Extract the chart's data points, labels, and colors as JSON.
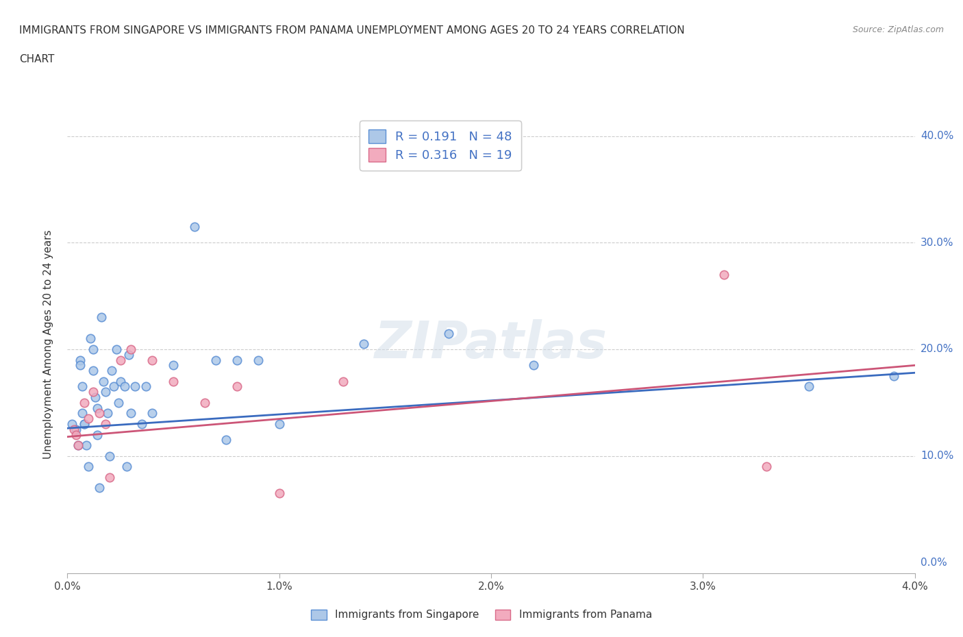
{
  "title_line1": "IMMIGRANTS FROM SINGAPORE VS IMMIGRANTS FROM PANAMA UNEMPLOYMENT AMONG AGES 20 TO 24 YEARS CORRELATION",
  "title_line2": "CHART",
  "source": "Source: ZipAtlas.com",
  "ylabel": "Unemployment Among Ages 20 to 24 years",
  "xlim": [
    0.0,
    0.04
  ],
  "ylim": [
    -0.01,
    0.42
  ],
  "watermark": "ZIPatlas",
  "legend1_r": "0.191",
  "legend1_n": "48",
  "legend2_r": "0.316",
  "legend2_n": "19",
  "singapore_color": "#adc8e8",
  "panama_color": "#f2abbe",
  "singapore_edge_color": "#5b8fd4",
  "panama_edge_color": "#d96b8a",
  "singapore_line_color": "#3a6bbf",
  "panama_line_color": "#cc5577",
  "legend_label1": "Immigrants from Singapore",
  "legend_label2": "Immigrants from Panama",
  "singapore_x": [
    0.0002,
    0.0004,
    0.0005,
    0.0006,
    0.0006,
    0.0007,
    0.0007,
    0.0008,
    0.0008,
    0.0009,
    0.001,
    0.0011,
    0.0012,
    0.0012,
    0.0013,
    0.0014,
    0.0014,
    0.0015,
    0.0016,
    0.0017,
    0.0018,
    0.0019,
    0.002,
    0.0021,
    0.0022,
    0.0023,
    0.0024,
    0.0025,
    0.0027,
    0.0028,
    0.0029,
    0.003,
    0.0032,
    0.0035,
    0.0037,
    0.004,
    0.005,
    0.006,
    0.007,
    0.0075,
    0.008,
    0.009,
    0.01,
    0.014,
    0.018,
    0.022,
    0.035,
    0.039
  ],
  "singapore_y": [
    0.13,
    0.125,
    0.11,
    0.19,
    0.185,
    0.165,
    0.14,
    0.13,
    0.13,
    0.11,
    0.09,
    0.21,
    0.2,
    0.18,
    0.155,
    0.145,
    0.12,
    0.07,
    0.23,
    0.17,
    0.16,
    0.14,
    0.1,
    0.18,
    0.165,
    0.2,
    0.15,
    0.17,
    0.165,
    0.09,
    0.195,
    0.14,
    0.165,
    0.13,
    0.165,
    0.14,
    0.185,
    0.315,
    0.19,
    0.115,
    0.19,
    0.19,
    0.13,
    0.205,
    0.215,
    0.185,
    0.165,
    0.175
  ],
  "panama_x": [
    0.0003,
    0.0004,
    0.0005,
    0.0008,
    0.001,
    0.0012,
    0.0015,
    0.0018,
    0.002,
    0.0025,
    0.003,
    0.004,
    0.005,
    0.0065,
    0.008,
    0.01,
    0.013,
    0.031,
    0.033
  ],
  "panama_y": [
    0.125,
    0.12,
    0.11,
    0.15,
    0.135,
    0.16,
    0.14,
    0.13,
    0.08,
    0.19,
    0.2,
    0.19,
    0.17,
    0.15,
    0.165,
    0.065,
    0.17,
    0.27,
    0.09
  ],
  "singapore_trend": [
    0.126,
    0.178
  ],
  "panama_trend": [
    0.118,
    0.185
  ],
  "x_ticks": [
    0.0,
    0.01,
    0.02,
    0.03,
    0.04
  ],
  "x_labels": [
    "0.0%",
    "1.0%",
    "2.0%",
    "3.0%",
    "4.0%"
  ],
  "y_ticks": [
    0.0,
    0.1,
    0.2,
    0.3,
    0.4
  ],
  "y_labels": [
    "0.0%",
    "10.0%",
    "20.0%",
    "30.0%",
    "40.0%"
  ]
}
